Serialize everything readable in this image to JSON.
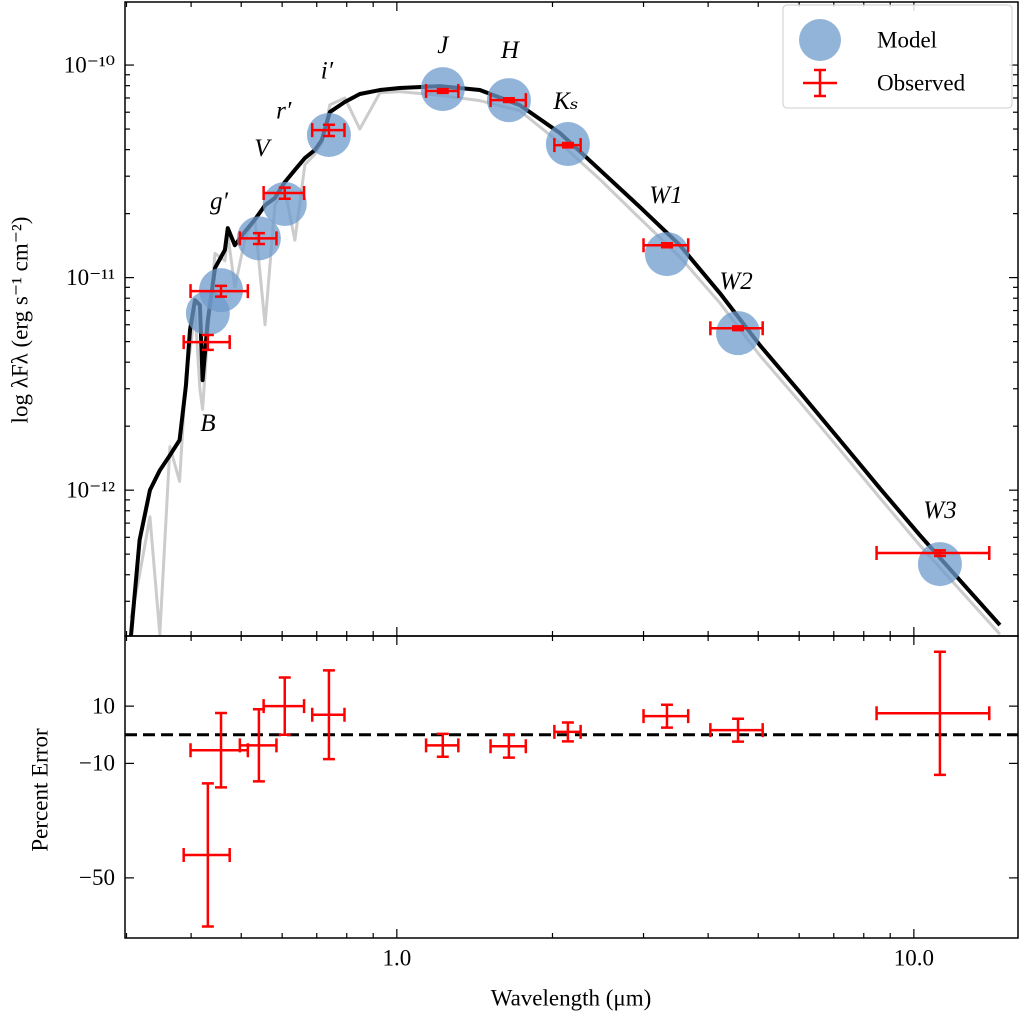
{
  "chart_data": [
    {
      "type": "sed",
      "y_label": "log λFλ (erg s⁻¹ cm⁻²)",
      "log_x": true,
      "log_y": true,
      "xlim": [
        0.298,
        15.9
      ],
      "ylim": [
        2.06e-13,
        1.98e-10
      ],
      "yticks": [
        {
          "value": 1e-12,
          "label": "10⁻¹²"
        },
        {
          "value": 1e-11,
          "label": "10⁻¹¹"
        },
        {
          "value": 1e-10,
          "label": "10⁻¹⁰"
        }
      ],
      "xminorticks": [
        0.3,
        0.4,
        0.5,
        0.6,
        0.7,
        0.8,
        0.9,
        2,
        3,
        4,
        5,
        6,
        7,
        8,
        9
      ],
      "yminorticks": [
        3e-13,
        4e-13,
        5e-13,
        6e-13,
        7e-13,
        8e-13,
        9e-13,
        2e-12,
        3e-12,
        4e-12,
        5e-12,
        6e-12,
        7e-12,
        8e-12,
        9e-12,
        2e-11,
        3e-11,
        4e-11,
        5e-11,
        6e-11,
        7e-11,
        8e-11,
        9e-11
      ],
      "spectrum_x": [
        0.306,
        0.318,
        0.333,
        0.348,
        0.364,
        0.38,
        0.391,
        0.398,
        0.407,
        0.416,
        0.421,
        0.431,
        0.445,
        0.465,
        0.471,
        0.486,
        0.508,
        0.531,
        0.556,
        0.581,
        0.607,
        0.635,
        0.664,
        0.694,
        0.716,
        0.742,
        0.793,
        0.848,
        0.927,
        1.013,
        1.211,
        1.447,
        1.729,
        2.067,
        2.47,
        2.951,
        3.527,
        4.215,
        5.037,
        6.019,
        7.193,
        8.596,
        10.27,
        12.27,
        14.67
      ],
      "spectra": [
        {
          "color": "#cccccc",
          "values": [
            2.5e-13,
            4e-13,
            7.5e-13,
            2.1e-13,
            1.6e-12,
            1.1e-12,
            3.5e-12,
            4.5e-12,
            7e-12,
            3e-12,
            2.4e-12,
            5.5e-12,
            1.3e-11,
            1.2e-11,
            1.6e-11,
            9e-12,
            1.5e-11,
            1.9e-11,
            6e-12,
            2.2e-11,
            2.6e-11,
            1.5e-11,
            3.4e-11,
            3.8e-11,
            4.3e-11,
            6.5e-11,
            7e-11,
            5e-11,
            7.4e-11,
            7.5e-11,
            7.2e-11,
            6.8e-11,
            6.1e-11,
            4.3e-11,
            2.9e-11,
            1.9e-11,
            1.25e-11,
            7.6e-12,
            4.3e-12,
            2.6e-12,
            1.55e-12,
            9.2e-13,
            5.5e-13,
            3.4e-13,
            2.1e-13
          ]
        },
        {
          "color": "#000000",
          "values": [
            2.06e-13,
            5.82e-13,
            1e-12,
            1.24e-12,
            1.46e-12,
            1.72e-12,
            3.12e-12,
            5.66e-12,
            7.83e-12,
            7.43e-12,
            3.29e-12,
            6.31e-12,
            1.11e-11,
            1.35e-11,
            1.71e-11,
            1.42e-11,
            1.64e-11,
            1.87e-11,
            2.19e-11,
            2.37e-11,
            2.81e-11,
            3.21e-11,
            3.65e-11,
            3.98e-11,
            4.44e-11,
            6.01e-11,
            6.7e-11,
            7.31e-11,
            7.63e-11,
            7.8e-11,
            7.96e-11,
            7.63e-11,
            6.48e-11,
            4.79e-11,
            3.21e-11,
            2.15e-11,
            1.42e-11,
            8.45e-12,
            4.81e-12,
            2.89e-12,
            1.72e-12,
            1.02e-12,
            6.14e-13,
            3.77e-13,
            2.32e-13
          ]
        }
      ],
      "bands": [
        "B",
        "g′",
        "V",
        "r′",
        "i′",
        "J",
        "H",
        "Kₛ",
        "W1",
        "W2",
        "W3"
      ],
      "x": [
        0.431,
        0.457,
        0.541,
        0.607,
        0.739,
        1.227,
        1.647,
        2.142,
        3.33,
        4.57,
        11.23
      ],
      "xerr": [
        0.044,
        0.058,
        0.044,
        0.0545,
        0.053,
        0.088,
        0.129,
        0.125,
        0.33,
        0.53,
        2.76
      ],
      "series": [
        {
          "name": "Model",
          "color": "#6f9bcc",
          "values": [
            6.8e-12,
            8.73e-12,
            1.53e-11,
            2.22e-11,
            4.69e-11,
            7.71e-11,
            6.84e-11,
            4.25e-11,
            1.29e-11,
            5.48e-12,
            4.49e-13
          ]
        },
        {
          "name": "Observed",
          "color": "#ff0000",
          "values": [
            4.97e-12,
            8.64e-12,
            1.53e-11,
            2.5e-11,
            4.94e-11,
            7.55e-11,
            6.84e-11,
            4.2e-11,
            1.42e-11,
            5.78e-12,
            5.06e-13
          ],
          "yerr": [
            4e-13,
            5e-13,
            9e-13,
            1.5e-12,
            3e-12,
            1.5e-12,
            1.4e-12,
            1e-12,
            3e-13,
            1.2e-13,
            1.5e-14
          ]
        }
      ],
      "legend": "upper right"
    },
    {
      "type": "errorbar",
      "y_label": "Percent Error",
      "x_label": "Wavelength (μm)",
      "log_x": true,
      "xlim": [
        0.298,
        15.9
      ],
      "xticks": [
        {
          "value": 1,
          "label": "1.0"
        },
        {
          "value": 10,
          "label": "10.0"
        }
      ],
      "ylim": [
        -71,
        34.5
      ],
      "yticks": [
        {
          "value": -50,
          "label": "−50"
        },
        {
          "value": -10,
          "label": "−10"
        },
        10
      ],
      "hline": 0,
      "color": "#ff0000",
      "values": [
        -42,
        -5.4,
        -3.7,
        10,
        7,
        -3.7,
        -4,
        1,
        6.5,
        1.6,
        7.5
      ],
      "yerr": [
        25,
        13,
        12.6,
        10,
        15.5,
        4,
        4,
        3.3,
        4,
        4,
        21.5
      ]
    }
  ]
}
